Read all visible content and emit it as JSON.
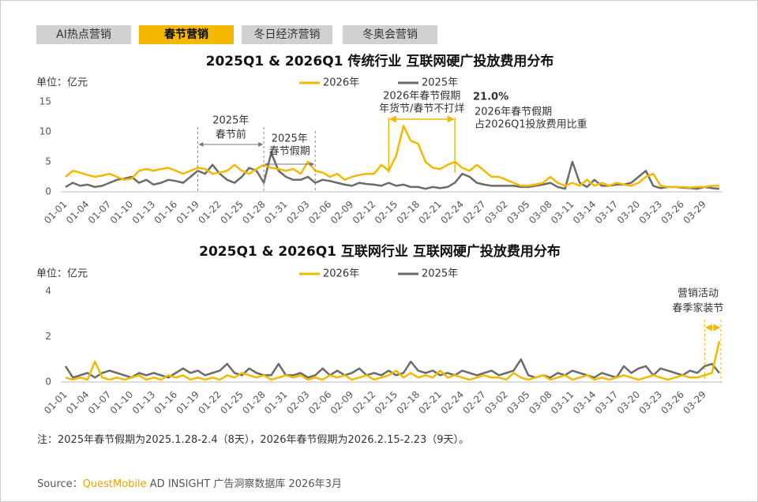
{
  "tabs": [
    "AI热点营销",
    "春节营销",
    "冬日经济营销",
    "冬奥会营销"
  ],
  "chart_data": [
    {
      "type": "line",
      "title": "2025Q1 & 2026Q1 传统行业 互联网硬广投放费用分布",
      "y_label": "单位：亿元",
      "categories": [
        "01-01",
        null,
        null,
        "01-04",
        null,
        null,
        "01-07",
        null,
        null,
        "01-10",
        null,
        null,
        "01-13",
        null,
        null,
        "01-16",
        null,
        null,
        "01-19",
        null,
        null,
        "01-22",
        null,
        null,
        "01-25",
        null,
        null,
        "01-28",
        null,
        null,
        "01-31",
        null,
        null,
        "02-03",
        null,
        null,
        "02-06",
        null,
        null,
        "02-09",
        null,
        null,
        "02-12",
        null,
        null,
        "02-15",
        null,
        null,
        "02-18",
        null,
        null,
        "02-21",
        null,
        null,
        "02-24",
        null,
        null,
        "02-27",
        null,
        null,
        "03-02",
        null,
        null,
        "03-05",
        null,
        null,
        "03-08",
        null,
        null,
        "03-11",
        null,
        null,
        "03-14",
        null,
        null,
        "03-17",
        null,
        null,
        "03-20",
        null,
        null,
        "03-23",
        null,
        null,
        "03-26",
        null,
        null,
        "03-29",
        null,
        null
      ],
      "series": [
        {
          "name": "2026年",
          "color": "#f5b800",
          "values": [
            2.5,
            3.5,
            3.2,
            2.8,
            2.5,
            2.7,
            3,
            2.5,
            2,
            2.2,
            3.5,
            3.8,
            3.5,
            3.8,
            4,
            3.5,
            3,
            3.5,
            4,
            3.8,
            3,
            3.2,
            3.5,
            4.5,
            3.5,
            3,
            3.8,
            4.5,
            4,
            3.8,
            3.5,
            3.8,
            3,
            5,
            3.5,
            3.2,
            2.5,
            3,
            2,
            2.5,
            2.8,
            3,
            3,
            4.5,
            3.5,
            6,
            11,
            8.5,
            8,
            5,
            4,
            3.8,
            4.5,
            5,
            4,
            3.5,
            4.5,
            3.5,
            2.5,
            2.5,
            2,
            1.5,
            1,
            1,
            1.2,
            1.5,
            2.5,
            1.5,
            1,
            1.5,
            1,
            2,
            1,
            1.5,
            1,
            1.5,
            1.2,
            1,
            1.5,
            2.5,
            3,
            1,
            0.8,
            0.8,
            0.8,
            0.7,
            0.8,
            0.8,
            1,
            1
          ]
        },
        {
          "name": "2025年",
          "color": "#6b6b6b",
          "values": [
            0.8,
            1.5,
            1,
            1.2,
            0.8,
            1,
            1.5,
            2,
            2.2,
            2.5,
            1.5,
            2,
            1.2,
            1.5,
            2,
            1.8,
            1.5,
            2.5,
            3.5,
            3,
            4.5,
            3,
            2,
            1.5,
            2.5,
            4,
            3.5,
            1.5,
            6.5,
            3.5,
            2.5,
            2,
            2,
            2.5,
            1.5,
            2,
            1.8,
            1.5,
            1.2,
            1,
            1.5,
            1.3,
            1.2,
            1,
            1.5,
            1,
            1.2,
            0.8,
            0.8,
            0.5,
            0.8,
            0.6,
            0.8,
            1.5,
            3,
            2.5,
            1.5,
            1.2,
            1,
            1,
            1,
            1,
            0.8,
            0.8,
            1,
            1.2,
            1.5,
            0.8,
            0.5,
            5,
            1.5,
            0.8,
            2,
            1,
            1,
            1.2,
            1.2,
            1.5,
            2.5,
            3.5,
            1,
            0.6,
            0.8,
            0.8,
            0.7,
            0.6,
            0.5,
            0.8,
            0.6,
            0.5
          ]
        }
      ],
      "ylim": [
        0,
        15
      ],
      "yticks": [
        0,
        5,
        10,
        15
      ],
      "annotations": [
        [
          "2025年",
          "春节前"
        ],
        [
          "2025年",
          "春节假期"
        ],
        [
          "2026年春节假期",
          "年货节/春节不打烊"
        ],
        [
          "21.0%",
          "2026年春节假期",
          "占2026Q1投放费用比重"
        ]
      ]
    },
    {
      "type": "line",
      "title": "2025Q1 & 2026Q1 互联网行业 互联网硬广投放费用分布",
      "y_label": "单位：亿元",
      "categories": [
        "01-01",
        null,
        null,
        "01-04",
        null,
        null,
        "01-07",
        null,
        null,
        "01-10",
        null,
        null,
        "01-13",
        null,
        null,
        "01-16",
        null,
        null,
        "01-19",
        null,
        null,
        "01-22",
        null,
        null,
        "01-25",
        null,
        null,
        "01-28",
        null,
        null,
        "01-31",
        null,
        null,
        "02-03",
        null,
        null,
        "02-06",
        null,
        null,
        "02-09",
        null,
        null,
        "02-12",
        null,
        null,
        "02-15",
        null,
        null,
        "02-18",
        null,
        null,
        "02-21",
        null,
        null,
        "02-24",
        null,
        null,
        "02-27",
        null,
        null,
        "03-02",
        null,
        null,
        "03-05",
        null,
        null,
        "03-08",
        null,
        null,
        "03-11",
        null,
        null,
        "03-14",
        null,
        null,
        "03-17",
        null,
        null,
        "03-20",
        null,
        null,
        "03-23",
        null,
        null,
        "03-26",
        null,
        null,
        "03-29",
        null,
        null
      ],
      "series": [
        {
          "name": "2026年",
          "color": "#f5b800",
          "values": [
            0.2,
            0.1,
            0.2,
            0.1,
            0.9,
            0.2,
            0.1,
            0.2,
            0.1,
            0.2,
            0.3,
            0.1,
            0.2,
            0.1,
            0.3,
            0.2,
            0.3,
            0.1,
            0.2,
            0.1,
            0.2,
            0.1,
            0.3,
            0.2,
            0.4,
            0.3,
            0.2,
            0.3,
            0.1,
            0.2,
            0.3,
            0.2,
            0.3,
            0.1,
            0.2,
            0.1,
            0.3,
            0.2,
            0.3,
            0.1,
            0.2,
            0.3,
            0.1,
            0.2,
            0.3,
            0.5,
            0.2,
            0.4,
            0.2,
            0.3,
            0.2,
            0.5,
            0.2,
            0.3,
            0.2,
            0.1,
            0.2,
            0.3,
            0.2,
            0.2,
            0.1,
            0.4,
            0.2,
            0.1,
            0.2,
            0.3,
            0.1,
            0.2,
            0.3,
            0.1,
            0.2,
            0.3,
            0.1,
            0.2,
            0.1,
            0.2,
            0.3,
            0.2,
            0.1,
            0.2,
            0.3,
            0.2,
            0.1,
            0.2,
            0.3,
            0.2,
            0.2,
            0.3,
            0.4,
            1.8
          ]
        },
        {
          "name": "2025年",
          "color": "#6b6b6b",
          "values": [
            0.7,
            0.2,
            0.3,
            0.4,
            0.2,
            0.4,
            0.5,
            0.4,
            0.3,
            0.2,
            0.4,
            0.3,
            0.4,
            0.3,
            0.2,
            0.4,
            0.6,
            0.4,
            0.5,
            0.3,
            0.4,
            0.5,
            0.8,
            0.4,
            0.3,
            0.6,
            0.4,
            0.3,
            0.3,
            0.8,
            0.3,
            0.3,
            0.4,
            0.2,
            0.3,
            0.6,
            0.3,
            0.5,
            0.3,
            0.4,
            0.6,
            0.3,
            0.4,
            0.3,
            0.5,
            0.3,
            0.4,
            0.9,
            0.5,
            0.4,
            0.5,
            0.3,
            0.4,
            0.3,
            0.5,
            0.4,
            0.3,
            0.4,
            0.5,
            0.3,
            0.4,
            0.5,
            1.0,
            0.3,
            0.2,
            0.3,
            0.2,
            0.4,
            0.3,
            0.5,
            0.4,
            0.3,
            0.2,
            0.4,
            0.3,
            0.2,
            0.7,
            0.4,
            0.6,
            0.7,
            0.3,
            0.6,
            0.5,
            0.4,
            0.3,
            0.5,
            0.4,
            0.7,
            0.8,
            0.4
          ]
        }
      ],
      "ylim": [
        0,
        4
      ],
      "yticks": [
        0,
        2,
        4
      ],
      "annotations": [
        [
          "营销活动",
          "春季家装节"
        ]
      ]
    }
  ],
  "footnote": "注：2025年春节假期为2025.1.28-2.4（8天），2026年春节假期为2026.2.15-2.23（9天）。",
  "source": {
    "label": "Source：",
    "brand": "QuestMobile",
    "text": "AD INSIGHT 广告洞察数据库 2026年3月"
  }
}
